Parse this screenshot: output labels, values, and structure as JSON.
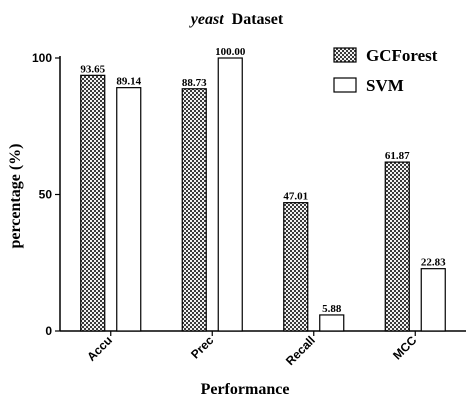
{
  "chart_data": {
    "type": "bar",
    "title_prefix": "yeast",
    "title_suffix": "Dataset",
    "xlabel": "Performance",
    "ylabel": "percentage (%)",
    "categories": [
      "Accu",
      "Prec",
      "Recall",
      "MCC"
    ],
    "ylim": [
      0,
      100
    ],
    "yticks": [
      "0",
      "50",
      "100"
    ],
    "series": [
      {
        "name": "GCForest",
        "values": [
          93.65,
          88.73,
          47.01,
          61.87
        ],
        "labels": [
          "93.65",
          "88.73",
          "47.01",
          "61.87"
        ],
        "pattern": "checkered"
      },
      {
        "name": "SVM",
        "values": [
          89.14,
          100.0,
          5.88,
          22.83
        ],
        "labels": [
          "89.14",
          "100.00",
          "5.88",
          "22.83"
        ],
        "pattern": "white"
      }
    ],
    "legend_position": "top-right",
    "grid": false
  }
}
